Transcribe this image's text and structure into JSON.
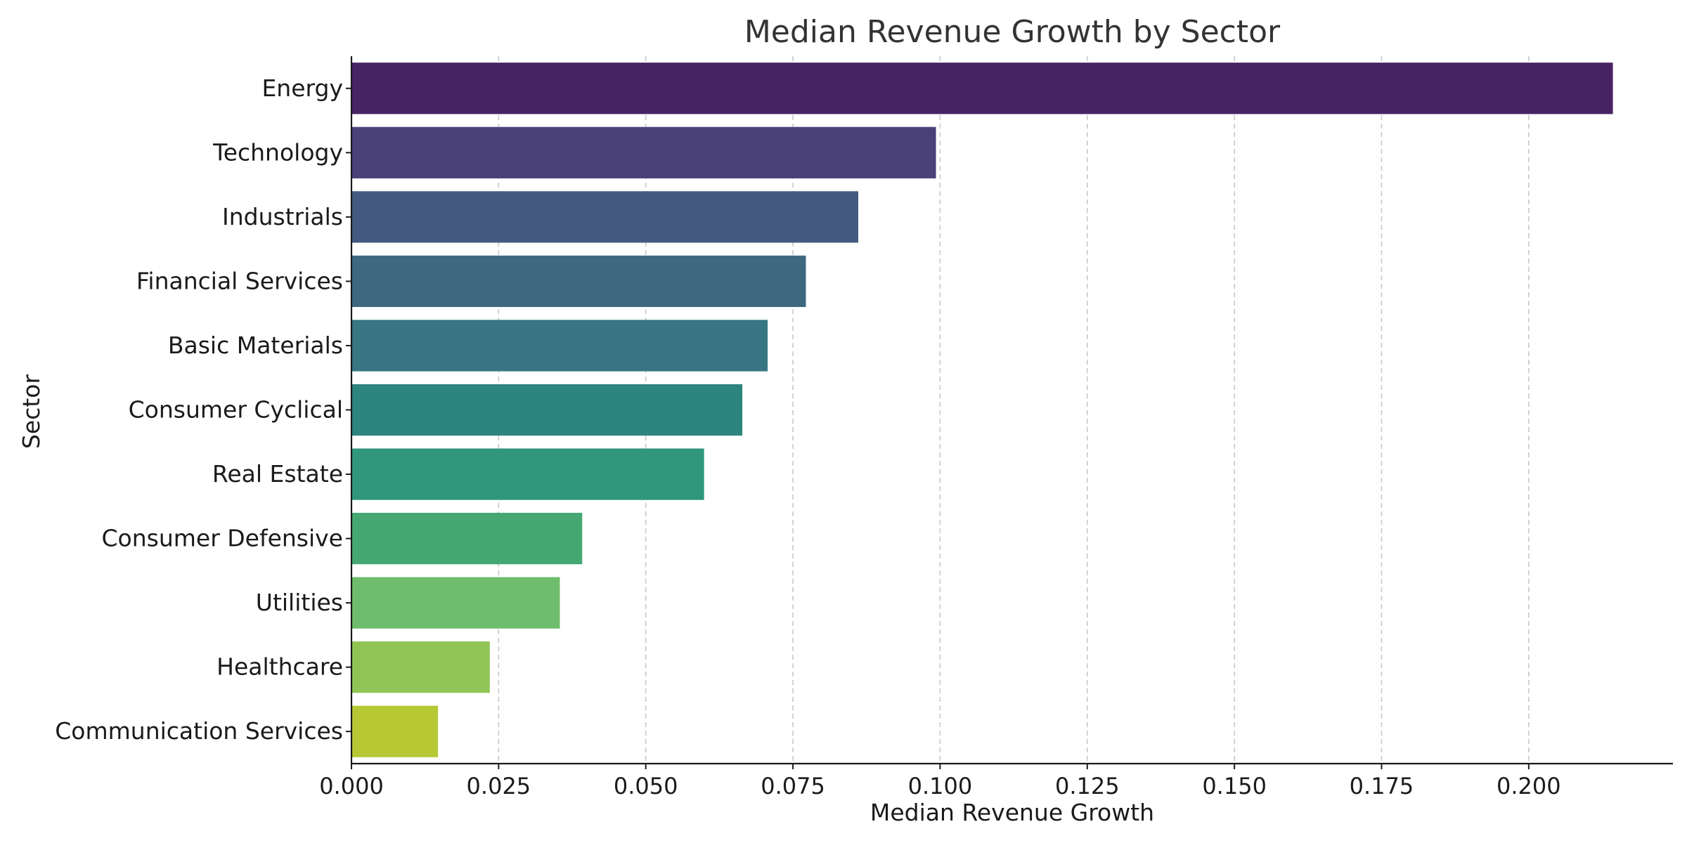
{
  "chart_data": {
    "type": "bar",
    "orientation": "horizontal",
    "title": "Median Revenue Growth by Sector",
    "xlabel": "Median Revenue Growth",
    "ylabel": "Sector",
    "xlim": [
      0,
      0.2245
    ],
    "xticks": [
      0.0,
      0.025,
      0.05,
      0.075,
      0.1,
      0.125,
      0.15,
      0.175,
      0.2
    ],
    "xtick_labels": [
      "0.000",
      "0.025",
      "0.050",
      "0.075",
      "0.100",
      "0.125",
      "0.150",
      "0.175",
      "0.200"
    ],
    "grid": "x-dashed",
    "categories": [
      "Energy",
      "Technology",
      "Industrials",
      "Financial Services",
      "Basic Materials",
      "Consumer Cyclical",
      "Real Estate",
      "Consumer Defensive",
      "Utilities",
      "Healthcare",
      "Communication Services"
    ],
    "values": [
      0.2143,
      0.0993,
      0.0861,
      0.0772,
      0.0707,
      0.0664,
      0.0599,
      0.0392,
      0.0354,
      0.0235,
      0.0147
    ],
    "colors": [
      "#482465",
      "#4a4179",
      "#455a80",
      "#3e6880",
      "#377682",
      "#2e847e",
      "#30967c",
      "#45a873",
      "#6dbd6c",
      "#90c555",
      "#b7c835"
    ]
  }
}
